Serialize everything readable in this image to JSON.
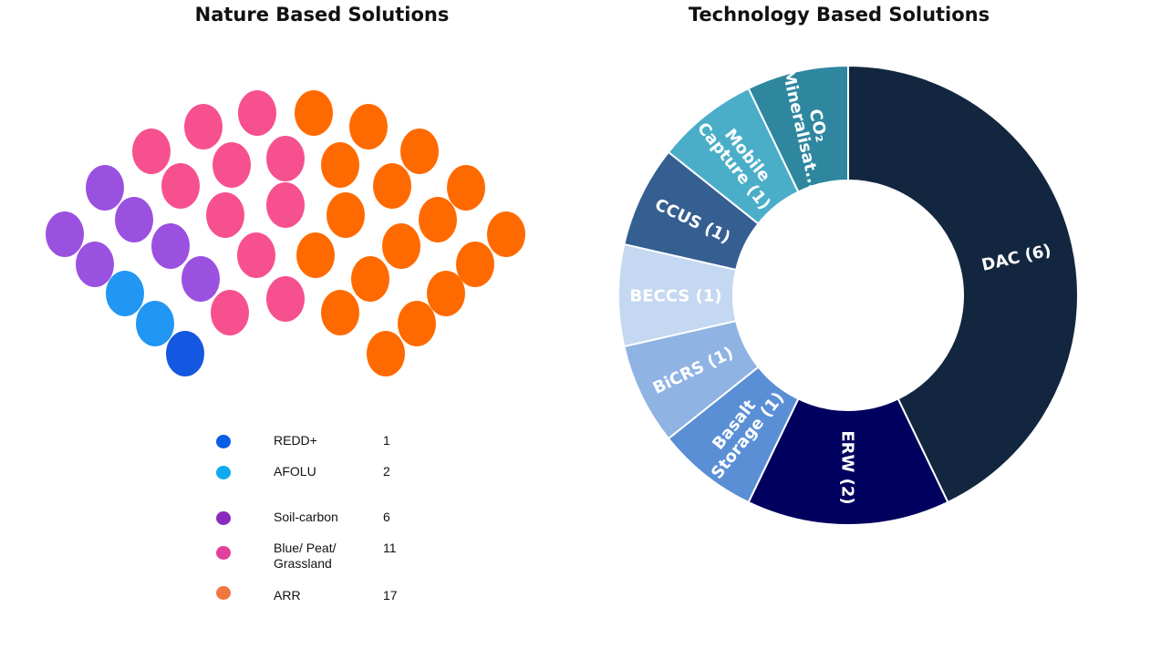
{
  "chart_data": [
    {
      "type": "scatter",
      "title": "Nature Based Solutions",
      "description_note": "",
      "series": [
        {
          "name": "REDD+",
          "count": 1,
          "color": "#1457e0"
        },
        {
          "name": "AFOLU",
          "count": 2,
          "color": "#2196f3"
        },
        {
          "name": "Soil-carbon",
          "count": 6,
          "color": "#9b51e0"
        },
        {
          "name": "Blue/ Peat/ Grassland",
          "count": 11,
          "color": "#f7508f"
        },
        {
          "name": "ARR",
          "count": 17,
          "color": "#ff6a00"
        }
      ],
      "legend": {
        "items": [
          {
            "label": "REDD+",
            "count": "1",
            "color": "#0a5de6"
          },
          {
            "label": "AFOLU",
            "count": "2",
            "color": "#11aaf0"
          },
          {
            "label": "Soil-carbon",
            "count": "6",
            "color": "#8a2bbf"
          },
          {
            "label": "Blue/ Peat/\nGrassland",
            "count": "11",
            "color": "#e3409b"
          },
          {
            "label": "ARR",
            "count": "17",
            "color": "#f07840"
          }
        ]
      }
    },
    {
      "type": "pie",
      "title": "Technology Based Solutions",
      "donut": true,
      "slices": [
        {
          "label": "DAC (6)",
          "value": 6,
          "color": "#13263f"
        },
        {
          "label": "ERW (2)",
          "value": 2,
          "color": "#00005e"
        },
        {
          "label": "Basalt Storage (1)",
          "label_lines": [
            "Basalt",
            "Storage (1)"
          ],
          "value": 1,
          "color": "#5a8fd6"
        },
        {
          "label": "BiCRS (1)",
          "value": 1,
          "color": "#8fb3e3"
        },
        {
          "label": "BECCS (1)",
          "value": 1,
          "color": "#c5d8f1"
        },
        {
          "label": "CCUS (1)",
          "value": 1,
          "color": "#355e91"
        },
        {
          "label": "Mobile Capture (1)",
          "label_lines": [
            "Mobile",
            "Capture (1)"
          ],
          "value": 1,
          "color": "#4aaec9"
        },
        {
          "label": "CO₂ Mineralisat...",
          "label_lines": [
            "CO₂",
            "Mineralisat..."
          ],
          "value": 1,
          "color": "#2e879f"
        }
      ]
    }
  ]
}
